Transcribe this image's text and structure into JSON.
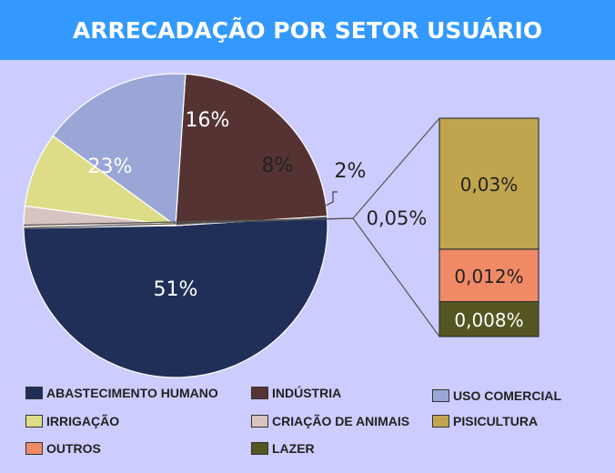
{
  "chart_data": {
    "type": "pie",
    "title": "ARRECADAÇÃO POR SETOR USUÁRIO",
    "slices": [
      {
        "name": "ABASTECIMENTO HUMANO",
        "value": 51,
        "label": "51%",
        "color": "#1F2F57"
      },
      {
        "name": "INDÚSTRIA",
        "value": 23,
        "label": "23%",
        "color": "#553333"
      },
      {
        "name": "USO COMERCIAL",
        "value": 16,
        "label": "16%",
        "color": "#99A6D6"
      },
      {
        "name": "IRRIGAÇÃO",
        "value": 8,
        "label": "8%",
        "color": "#DDDD88"
      },
      {
        "name": "CRIAÇÃO DE ANIMAIS",
        "value": 2,
        "label": "2%",
        "color": "#D7C3C0"
      },
      {
        "name": "OUTROS (agrupado)",
        "value": 0.05,
        "label": "0,05%",
        "color": "#D7C3C0"
      }
    ],
    "breakdown": {
      "label": "0,05%",
      "segments": [
        {
          "name": "PISICULTURA",
          "value": 0.03,
          "label": "0,03%",
          "color": "#C1A44E"
        },
        {
          "name": "OUTROS",
          "value": 0.012,
          "label": "0,012%",
          "color": "#F08A66"
        },
        {
          "name": "LAZER",
          "value": 0.008,
          "label": "0,008%",
          "color": "#555522"
        }
      ]
    },
    "legend": [
      {
        "name": "ABASTECIMENTO HUMANO",
        "color": "#1F2F57"
      },
      {
        "name": "INDÚSTRIA",
        "color": "#553333"
      },
      {
        "name": "USO COMERCIAL",
        "color": "#99A6D6"
      },
      {
        "name": "IRRIGAÇÃO",
        "color": "#DDDD88"
      },
      {
        "name": "CRIAÇÃO DE ANIMAIS",
        "color": "#D7C3C0"
      },
      {
        "name": "PISICULTURA",
        "color": "#C1A44E"
      },
      {
        "name": "OUTROS",
        "color": "#F08A66"
      },
      {
        "name": "LAZER",
        "color": "#555522"
      }
    ],
    "legend_placement": "bottom"
  }
}
